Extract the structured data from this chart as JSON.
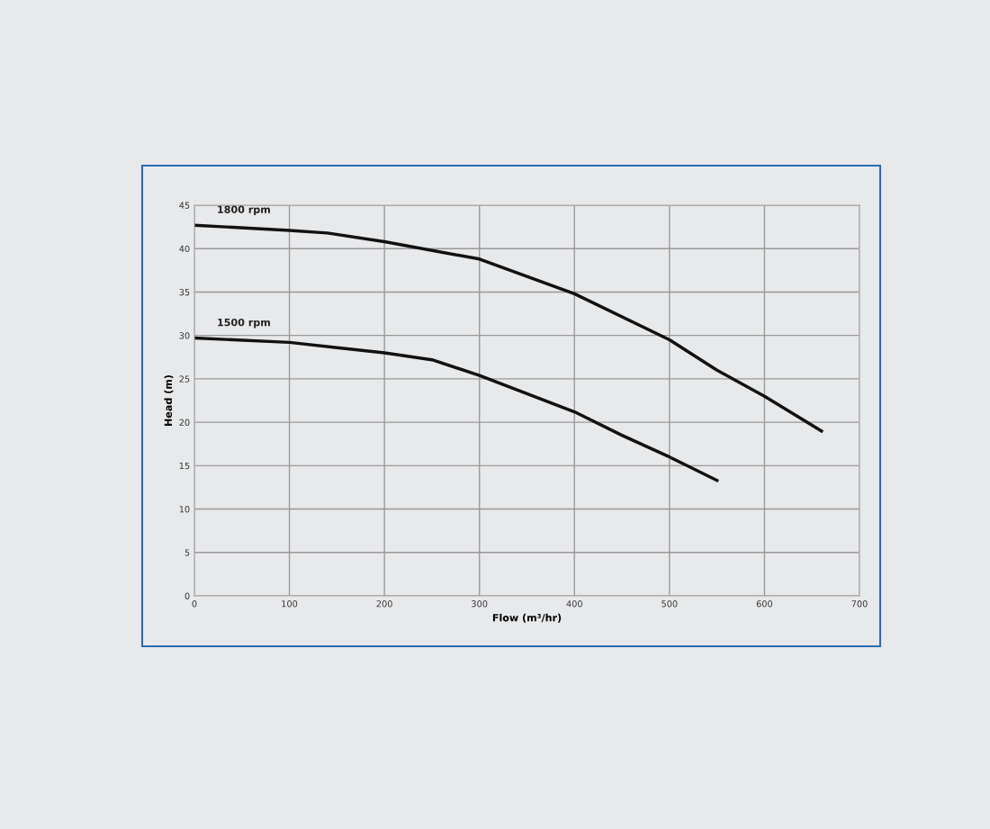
{
  "chart_data": {
    "type": "line",
    "xlabel": "Flow (m³/hr)",
    "ylabel": "Head (m)",
    "xlim": [
      0,
      700
    ],
    "xticks": [
      0,
      100,
      200,
      300,
      400,
      500,
      600,
      700
    ],
    "ylim": [
      0,
      45
    ],
    "yticks": [
      0,
      5,
      10,
      15,
      20,
      25,
      30,
      35,
      40,
      45
    ],
    "grid": true,
    "line_style": "solid",
    "marker": "none",
    "series": [
      {
        "name": "1800 rpm",
        "color": "#111111",
        "x": [
          0,
          100,
          140,
          200,
          300,
          400,
          500,
          550,
          600,
          660
        ],
        "values": [
          42.7,
          42.1,
          41.8,
          40.8,
          38.8,
          34.8,
          29.5,
          26,
          23,
          19
        ]
      },
      {
        "name": "1500 rpm",
        "color": "#111111",
        "x": [
          0,
          100,
          150,
          200,
          250,
          300,
          400,
          450,
          500,
          550
        ],
        "values": [
          29.7,
          29.2,
          28.6,
          28,
          27.2,
          25.4,
          21.2,
          18.5,
          16,
          13.3
        ]
      }
    ]
  }
}
